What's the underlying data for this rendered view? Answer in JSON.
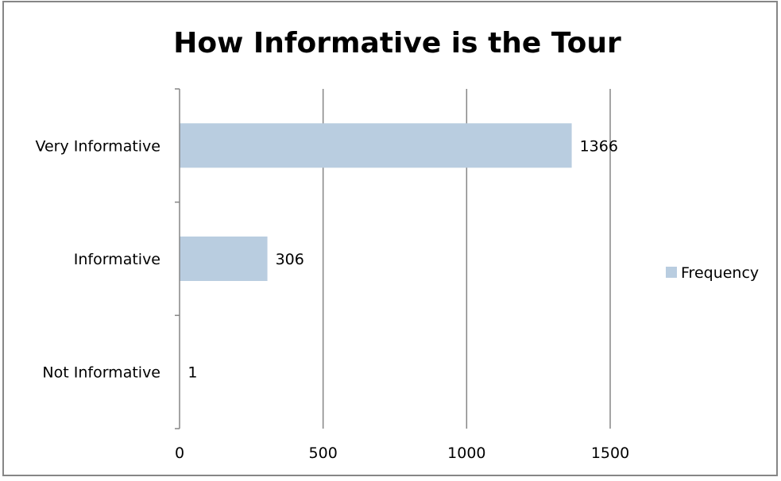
{
  "chart_data": {
    "type": "bar",
    "orientation": "horizontal",
    "title": "How Informative is the Tour",
    "xlabel": "",
    "ylabel": "",
    "categories": [
      "Very Informative",
      "Informative",
      "Not Informative"
    ],
    "series": [
      {
        "name": "Frequency",
        "values": [
          1366,
          306,
          1
        ],
        "color": "#b9cde0"
      }
    ],
    "xlim": [
      0,
      1500
    ],
    "xticks": [
      0,
      500,
      1000,
      1500
    ],
    "grid": "vertical",
    "legend_position": "right",
    "data_labels": [
      "1366",
      "306",
      "1"
    ]
  },
  "colors": {
    "bar": "#b9cde0",
    "grid": "#868686",
    "axis": "#868686",
    "frame": "#868686"
  }
}
